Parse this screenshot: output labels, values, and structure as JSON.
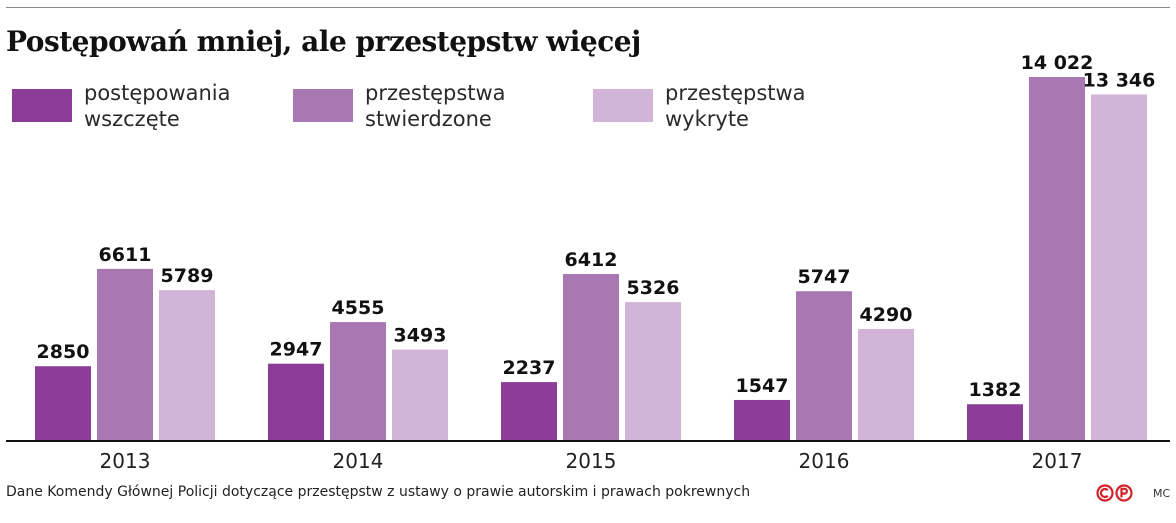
{
  "title": "Postępowań mniej, ale przestępstw więcej",
  "legend": [
    {
      "label": "postępowania\nwszczęte",
      "color": "#8b3d98"
    },
    {
      "label": "przestępstwa\nstwierdzone",
      "color": "#a878b3"
    },
    {
      "label": "przestępstwa\nwykryte",
      "color": "#d1b4d8"
    }
  ],
  "chart_data": {
    "type": "bar",
    "categories": [
      "2013",
      "2014",
      "2015",
      "2016",
      "2017"
    ],
    "series": [
      {
        "name": "postępowania wszczęte",
        "color": "#8b3d98",
        "values": [
          2850,
          2947,
          2237,
          1547,
          1382
        ],
        "labels": [
          "2850",
          "2947",
          "2237",
          "1547",
          "1382"
        ]
      },
      {
        "name": "przestępstwa stwierdzone",
        "color": "#a878b3",
        "values": [
          6611,
          4555,
          6412,
          5747,
          14022
        ],
        "labels": [
          "6611",
          "4555",
          "6412",
          "5747",
          "14 022"
        ]
      },
      {
        "name": "przestępstwa wykryte",
        "color": "#d1b4d8",
        "values": [
          5789,
          3493,
          5326,
          4290,
          13346
        ],
        "labels": [
          "5789",
          "3493",
          "5326",
          "4290",
          "13 346"
        ]
      }
    ],
    "title": "Postępowań mniej, ale przestępstw więcej",
    "xlabel": "",
    "ylabel": "",
    "ylim": [
      0,
      14022
    ],
    "grid": false,
    "legend_position": "top-left"
  },
  "footer": {
    "source": "Dane Komendy Głównej Policji dotyczące przestępstw z ustawy o prawie autorskim i prawach pokrewnych",
    "credit": "MC",
    "logo_icon": "cc-logo-icon"
  }
}
